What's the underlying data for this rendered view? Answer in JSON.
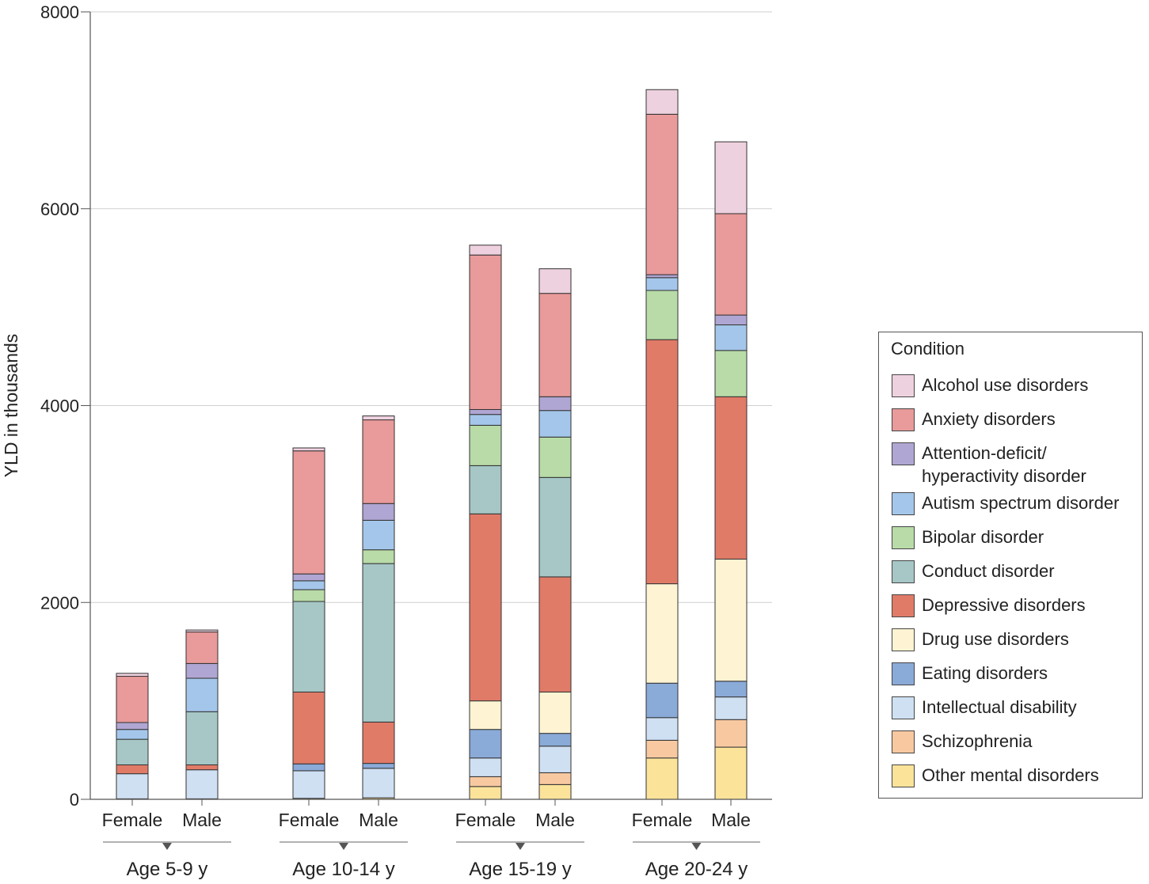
{
  "chart_data": {
    "type": "bar",
    "stacked": true,
    "ylabel": "YLD in thousands",
    "ylim": [
      0,
      8000
    ],
    "yticks": [
      0,
      2000,
      4000,
      6000,
      8000
    ],
    "grid": "horizontal",
    "legend_title": "Condition",
    "legend_position": "right",
    "groups": [
      "Age 5-9 y",
      "Age 10-14 y",
      "Age 15-19 y",
      "Age 20-24 y"
    ],
    "categories": [
      "Female",
      "Male",
      "Female",
      "Male",
      "Female",
      "Male",
      "Female",
      "Male"
    ],
    "series": [
      {
        "name": "Other mental disorders",
        "color": "#fbe39a",
        "values": [
          5,
          5,
          10,
          15,
          130,
          150,
          420,
          530
        ]
      },
      {
        "name": "Schizophrenia",
        "color": "#f8c9a1",
        "values": [
          0,
          0,
          0,
          0,
          100,
          120,
          180,
          280
        ]
      },
      {
        "name": "Intellectual disability",
        "color": "#cfe0f3",
        "values": [
          255,
          295,
          280,
          300,
          190,
          270,
          230,
          230
        ]
      },
      {
        "name": "Eating disorders",
        "color": "#8aaad8",
        "values": [
          0,
          0,
          70,
          50,
          290,
          130,
          350,
          160
        ]
      },
      {
        "name": "Drug use disorders",
        "color": "#fef4d3",
        "values": [
          0,
          0,
          0,
          0,
          290,
          420,
          1010,
          1240
        ]
      },
      {
        "name": "Depressive disorders",
        "color": "#e07b68",
        "values": [
          90,
          50,
          730,
          420,
          1900,
          1170,
          2480,
          1650
        ]
      },
      {
        "name": "Conduct disorder",
        "color": "#a6c7c6",
        "values": [
          260,
          540,
          920,
          1610,
          490,
          1010,
          0,
          0
        ]
      },
      {
        "name": "Bipolar disorder",
        "color": "#b8dba8",
        "values": [
          0,
          0,
          120,
          140,
          410,
          410,
          500,
          470
        ]
      },
      {
        "name": "Autism spectrum disorder",
        "color": "#a4c6ea",
        "values": [
          100,
          340,
          90,
          300,
          110,
          270,
          130,
          260
        ]
      },
      {
        "name": "Attention-deficit/\nhyperactivity disorder",
        "color": "#b0a6d3",
        "values": [
          70,
          150,
          70,
          170,
          50,
          140,
          30,
          100
        ]
      },
      {
        "name": "Anxiety disorders",
        "color": "#e99a9a",
        "values": [
          470,
          320,
          1250,
          850,
          1570,
          1050,
          1630,
          1030
        ]
      },
      {
        "name": "Alcohol use disorders",
        "color": "#eed1de",
        "values": [
          30,
          20,
          30,
          40,
          100,
          250,
          250,
          730
        ]
      }
    ]
  }
}
